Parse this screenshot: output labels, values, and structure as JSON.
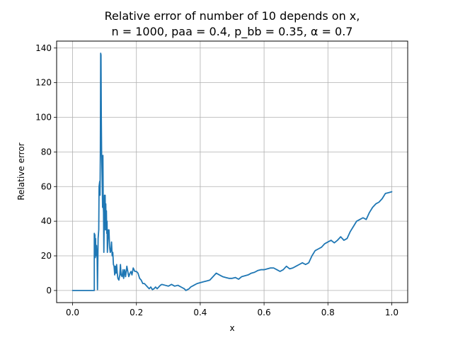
{
  "chart_data": {
    "type": "line",
    "title_line1": "Relative error of number of 10 depends on x,",
    "title_line2": "n = 1000, paa = 0.4, p_bb = 0.35, α = 0.7",
    "xlabel": "x",
    "ylabel": "Relative error",
    "xlim": [
      -0.05,
      1.05
    ],
    "ylim": [
      -7,
      144
    ],
    "x_ticks": [
      0.0,
      0.2,
      0.4,
      0.6,
      0.8,
      1.0
    ],
    "x_tick_labels": [
      "0.0",
      "0.2",
      "0.4",
      "0.6",
      "0.8",
      "1.0"
    ],
    "y_ticks": [
      0,
      20,
      40,
      60,
      80,
      100,
      120,
      140
    ],
    "y_tick_labels": [
      "0",
      "20",
      "40",
      "60",
      "80",
      "100",
      "120",
      "140"
    ],
    "grid": true,
    "series": [
      {
        "color": "#1f77b4",
        "points": [
          [
            0.0,
            0
          ],
          [
            0.068,
            0
          ],
          [
            0.068,
            33
          ],
          [
            0.07,
            32
          ],
          [
            0.071,
            19
          ],
          [
            0.072,
            30
          ],
          [
            0.073,
            20
          ],
          [
            0.075,
            26
          ],
          [
            0.077,
            18
          ],
          [
            0.078,
            0.5
          ],
          [
            0.08,
            30
          ],
          [
            0.082,
            35
          ],
          [
            0.083,
            60
          ],
          [
            0.085,
            63
          ],
          [
            0.086,
            55
          ],
          [
            0.087,
            80
          ],
          [
            0.088,
            137
          ],
          [
            0.089,
            136
          ],
          [
            0.09,
            100
          ],
          [
            0.091,
            78
          ],
          [
            0.092,
            70
          ],
          [
            0.093,
            60
          ],
          [
            0.094,
            48
          ],
          [
            0.095,
            78
          ],
          [
            0.096,
            50
          ],
          [
            0.097,
            45
          ],
          [
            0.098,
            22
          ],
          [
            0.099,
            40
          ],
          [
            0.1,
            55
          ],
          [
            0.101,
            45
          ],
          [
            0.102,
            55
          ],
          [
            0.103,
            35
          ],
          [
            0.104,
            50
          ],
          [
            0.105,
            38
          ],
          [
            0.106,
            46
          ],
          [
            0.107,
            33
          ],
          [
            0.108,
            40
          ],
          [
            0.109,
            22
          ],
          [
            0.11,
            26
          ],
          [
            0.112,
            35
          ],
          [
            0.114,
            35
          ],
          [
            0.116,
            25
          ],
          [
            0.118,
            22
          ],
          [
            0.12,
            23
          ],
          [
            0.122,
            28
          ],
          [
            0.124,
            20
          ],
          [
            0.126,
            22
          ],
          [
            0.128,
            15
          ],
          [
            0.13,
            14
          ],
          [
            0.132,
            9
          ],
          [
            0.134,
            14
          ],
          [
            0.136,
            10
          ],
          [
            0.138,
            15
          ],
          [
            0.14,
            10
          ],
          [
            0.142,
            7
          ],
          [
            0.145,
            6
          ],
          [
            0.148,
            9
          ],
          [
            0.15,
            15
          ],
          [
            0.152,
            9
          ],
          [
            0.155,
            8
          ],
          [
            0.158,
            12
          ],
          [
            0.16,
            7
          ],
          [
            0.163,
            12
          ],
          [
            0.166,
            8
          ],
          [
            0.17,
            14
          ],
          [
            0.173,
            11
          ],
          [
            0.176,
            8
          ],
          [
            0.18,
            10
          ],
          [
            0.183,
            11
          ],
          [
            0.186,
            9
          ],
          [
            0.19,
            13
          ],
          [
            0.195,
            11
          ],
          [
            0.2,
            11
          ],
          [
            0.205,
            10
          ],
          [
            0.21,
            7
          ],
          [
            0.215,
            6
          ],
          [
            0.22,
            4
          ],
          [
            0.225,
            4
          ],
          [
            0.23,
            3
          ],
          [
            0.235,
            2
          ],
          [
            0.24,
            1
          ],
          [
            0.245,
            2
          ],
          [
            0.25,
            0.5
          ],
          [
            0.255,
            1
          ],
          [
            0.26,
            2
          ],
          [
            0.265,
            1
          ],
          [
            0.27,
            2
          ],
          [
            0.275,
            3
          ],
          [
            0.28,
            3.5
          ],
          [
            0.29,
            3
          ],
          [
            0.3,
            2.5
          ],
          [
            0.31,
            3.5
          ],
          [
            0.32,
            2.5
          ],
          [
            0.33,
            3
          ],
          [
            0.34,
            2
          ],
          [
            0.345,
            1.5
          ],
          [
            0.35,
            1
          ],
          [
            0.355,
            0
          ],
          [
            0.36,
            0.5
          ],
          [
            0.365,
            1
          ],
          [
            0.37,
            2
          ],
          [
            0.38,
            3
          ],
          [
            0.39,
            4
          ],
          [
            0.4,
            4.5
          ],
          [
            0.41,
            5
          ],
          [
            0.42,
            5.5
          ],
          [
            0.43,
            6
          ],
          [
            0.44,
            8
          ],
          [
            0.45,
            10
          ],
          [
            0.46,
            9
          ],
          [
            0.47,
            8
          ],
          [
            0.48,
            7.5
          ],
          [
            0.49,
            7
          ],
          [
            0.5,
            7
          ],
          [
            0.51,
            7.5
          ],
          [
            0.52,
            6.5
          ],
          [
            0.53,
            8
          ],
          [
            0.54,
            8.5
          ],
          [
            0.55,
            9
          ],
          [
            0.56,
            10
          ],
          [
            0.57,
            10.5
          ],
          [
            0.58,
            11.5
          ],
          [
            0.59,
            12
          ],
          [
            0.6,
            12
          ],
          [
            0.61,
            12.5
          ],
          [
            0.62,
            13
          ],
          [
            0.63,
            13
          ],
          [
            0.64,
            12
          ],
          [
            0.65,
            11
          ],
          [
            0.66,
            12
          ],
          [
            0.67,
            14
          ],
          [
            0.68,
            12.5
          ],
          [
            0.69,
            13
          ],
          [
            0.7,
            14
          ],
          [
            0.71,
            15
          ],
          [
            0.72,
            16
          ],
          [
            0.73,
            15
          ],
          [
            0.74,
            16
          ],
          [
            0.75,
            20
          ],
          [
            0.76,
            23
          ],
          [
            0.77,
            24
          ],
          [
            0.78,
            25
          ],
          [
            0.79,
            27
          ],
          [
            0.8,
            28
          ],
          [
            0.81,
            29
          ],
          [
            0.82,
            27.5
          ],
          [
            0.83,
            29
          ],
          [
            0.84,
            31
          ],
          [
            0.85,
            29
          ],
          [
            0.86,
            30
          ],
          [
            0.87,
            34
          ],
          [
            0.88,
            37
          ],
          [
            0.89,
            40
          ],
          [
            0.9,
            41
          ],
          [
            0.91,
            42
          ],
          [
            0.92,
            41
          ],
          [
            0.93,
            45
          ],
          [
            0.94,
            48
          ],
          [
            0.95,
            50
          ],
          [
            0.96,
            51
          ],
          [
            0.97,
            53
          ],
          [
            0.98,
            56
          ],
          [
            0.99,
            56.5
          ],
          [
            1.0,
            57
          ]
        ]
      }
    ]
  }
}
